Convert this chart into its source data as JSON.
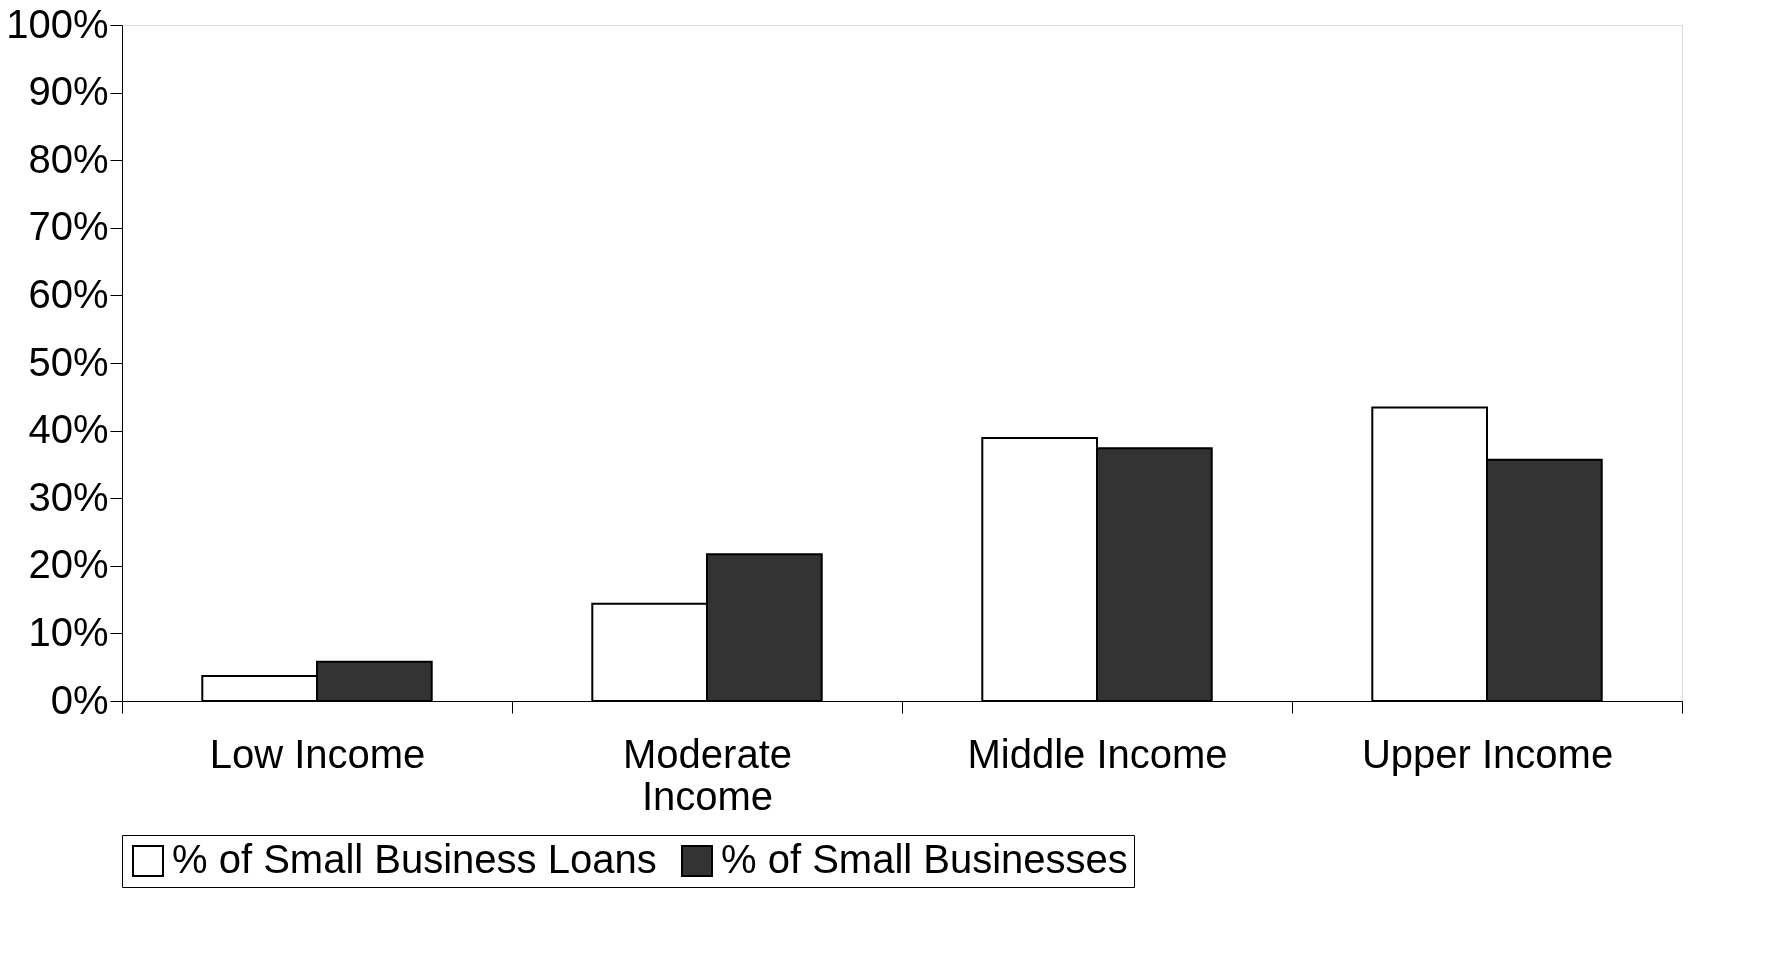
{
  "chart_data": {
    "type": "bar",
    "categories": [
      "Low Income",
      "Moderate Income",
      "Middle Income",
      "Upper Income"
    ],
    "series": [
      {
        "name": "% of Small Business Loans",
        "color": "#ffffff",
        "values": [
          3.7,
          14.4,
          38.9,
          43.4
        ]
      },
      {
        "name": "% of Small Businesses",
        "color": "#333333",
        "values": [
          5.8,
          21.7,
          37.4,
          35.7
        ]
      }
    ],
    "ylim": [
      0,
      100
    ],
    "yticks": [
      {
        "value": 0,
        "label": "0%"
      },
      {
        "value": 10,
        "label": "10%"
      },
      {
        "value": 20,
        "label": "20%"
      },
      {
        "value": 30,
        "label": "30%"
      },
      {
        "value": 40,
        "label": "40%"
      },
      {
        "value": 50,
        "label": "50%"
      },
      {
        "value": 60,
        "label": "60%"
      },
      {
        "value": 70,
        "label": "70%"
      },
      {
        "value": 80,
        "label": "80%"
      },
      {
        "value": 90,
        "label": "90%"
      },
      {
        "value": 100,
        "label": "100%"
      }
    ],
    "grid": false,
    "legend": "bottom"
  }
}
